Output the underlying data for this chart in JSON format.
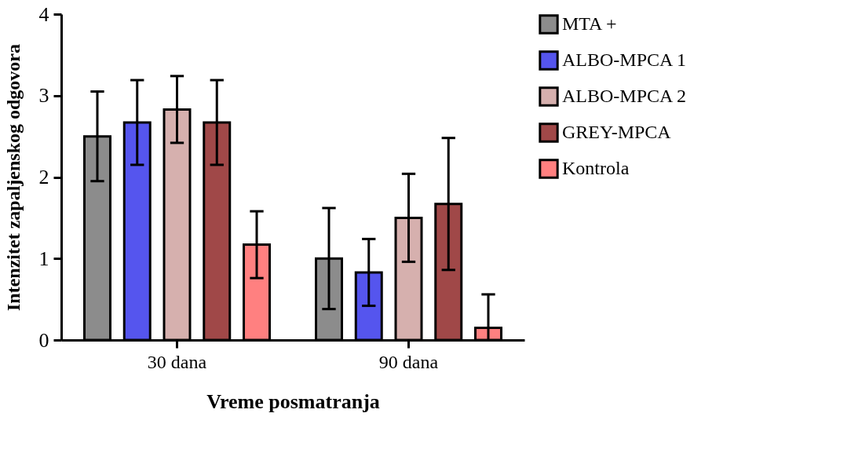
{
  "chart_data": {
    "type": "bar",
    "xlabel": "Vreme posmatranja",
    "ylabel": "Intenzitet zapaljenskog odgovora",
    "categories": [
      "30 dana",
      "90 dana"
    ],
    "series": [
      {
        "name": "MTA +",
        "color": "#8c8c8c",
        "values": [
          2.5,
          1.0
        ],
        "errors": [
          0.55,
          0.62
        ]
      },
      {
        "name": "ALBO-MPCA 1",
        "color": "#5555ee",
        "values": [
          2.67,
          0.83
        ],
        "errors": [
          0.52,
          0.41
        ]
      },
      {
        "name": "ALBO-MPCA 2",
        "color": "#d6b0ae",
        "values": [
          2.83,
          1.5
        ],
        "errors": [
          0.41,
          0.54
        ]
      },
      {
        "name": "GREY-MPCA",
        "color": "#a04848",
        "values": [
          2.67,
          1.67
        ],
        "errors": [
          0.52,
          0.81
        ]
      },
      {
        "name": "Kontrola",
        "color": "#ff8080",
        "values": [
          1.17,
          0.15
        ],
        "errors": [
          0.41,
          [
            0,
            0.56
          ]
        ]
      }
    ],
    "ylim": [
      0,
      4
    ],
    "yticks": [
      0,
      1,
      2,
      3,
      4
    ],
    "grid": false,
    "legend": "top right"
  }
}
